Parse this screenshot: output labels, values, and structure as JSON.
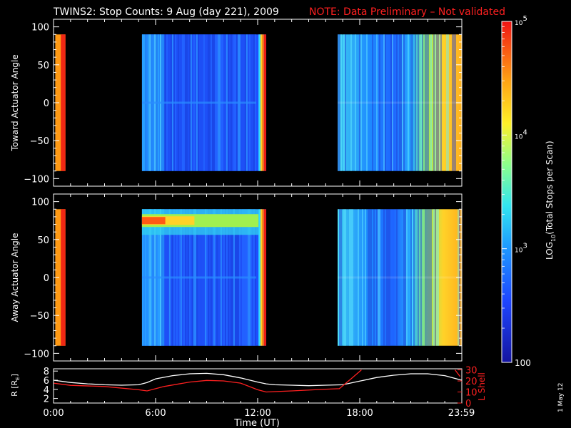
{
  "title": "TWINS2: Stop Counts:  9 Aug (day 221), 2009",
  "note": "NOTE: Data Preliminary – Not validated",
  "date_stamp": "1 May 12",
  "colorbar": {
    "label": "LOG10(Total Stops per Scan)",
    "label_prefix": "LOG",
    "label_sub": "10",
    "label_suffix": "(Total Stops per Scan)",
    "ticks": [
      {
        "value": 100,
        "label": "100"
      },
      {
        "base": "10",
        "exp": "3",
        "value": 1000
      },
      {
        "base": "10",
        "exp": "4",
        "value": 10000
      },
      {
        "base": "10",
        "exp": "5",
        "value": 100000
      }
    ],
    "range": [
      100,
      100000
    ],
    "scale": "log"
  },
  "chart_data": [
    {
      "type": "heatmap",
      "panel": "top",
      "ylabel": "Toward Actuator Angle",
      "ylim": [
        -110,
        110
      ],
      "y_ticks": [
        "100",
        "50",
        "0",
        "−50",
        "−100"
      ],
      "y_tick_values": [
        100,
        50,
        0,
        -50,
        -100
      ],
      "angle_range": [
        -90,
        90
      ],
      "xlim_hours": [
        0,
        24
      ],
      "data_segments_hours": [
        [
          0.1,
          0.7
        ],
        [
          5.2,
          12.5
        ],
        [
          16.7,
          24
        ]
      ],
      "typical_counts": {
        "segment1": 30000,
        "segment2_core": 500,
        "segment2_edge": 50000,
        "segment3_start": 700,
        "segment3_end": 20000
      }
    },
    {
      "type": "heatmap",
      "panel": "middle",
      "ylabel": "Away Actuator Angle",
      "ylim": [
        -110,
        110
      ],
      "y_ticks": [
        "100",
        "50",
        "0",
        "−50",
        "−100"
      ],
      "y_tick_values": [
        100,
        50,
        0,
        -50,
        -100
      ],
      "angle_range": [
        -90,
        90
      ],
      "xlim_hours": [
        0,
        24
      ],
      "data_segments_hours": [
        [
          0.1,
          0.7
        ],
        [
          5.2,
          12.5
        ],
        [
          16.7,
          24
        ]
      ],
      "enhancement_band": {
        "angle": 75,
        "hours": [
          5.2,
          12.5
        ],
        "peak_counts": 60000
      }
    },
    {
      "type": "line",
      "panel": "bottom",
      "ylabel_left": "R [RE]",
      "ylabel_left_prefix": "R [R",
      "ylabel_left_sub": "E",
      "ylabel_left_suffix": "]",
      "ylabel_right": "L Shell",
      "xlabel": "Time (UT)",
      "x_tick_labels": [
        "0:00",
        "6:00",
        "12:00",
        "18:00",
        "23:59"
      ],
      "x_tick_hours": [
        0,
        6,
        12,
        18,
        23.98
      ],
      "y_left_ticks": [
        "8",
        "6",
        "4",
        "2"
      ],
      "y_left_values": [
        8,
        6,
        4,
        2
      ],
      "y_left_lim": [
        1,
        8.5
      ],
      "y_right_ticks": [
        "30",
        "20",
        "10",
        "0"
      ],
      "y_right_values": [
        30,
        20,
        10,
        0
      ],
      "y_right_lim": [
        0,
        31
      ],
      "series": [
        {
          "name": "R",
          "color": "#ffffff",
          "axis": "left",
          "x": [
            0,
            1,
            2,
            3,
            4,
            5,
            5.5,
            6,
            7,
            8,
            9,
            10,
            11,
            12,
            12.5,
            13,
            14,
            15,
            16,
            17,
            18,
            19,
            20,
            21,
            22,
            23,
            24
          ],
          "y": [
            6.0,
            5.5,
            5.2,
            5.0,
            4.9,
            5.0,
            5.5,
            6.3,
            7.0,
            7.4,
            7.5,
            7.2,
            6.5,
            5.6,
            5.2,
            5.0,
            4.9,
            4.8,
            4.9,
            5.0,
            5.8,
            6.6,
            7.1,
            7.4,
            7.4,
            7.0,
            6.0
          ]
        },
        {
          "name": "L Shell",
          "color": "#ff2020",
          "axis": "right",
          "x": [
            0,
            0.5,
            1,
            3,
            5,
            5.5,
            6.5,
            8,
            9,
            10,
            11,
            12,
            12.5,
            14,
            16,
            16.8,
            17.5,
            18.1,
            18.3,
            23.6,
            23.9
          ],
          "y": [
            18,
            17,
            16,
            15,
            12,
            11,
            15,
            19,
            20.5,
            20,
            18,
            12,
            10,
            11,
            12.5,
            13,
            22,
            30,
            null,
            30,
            24
          ]
        }
      ]
    }
  ]
}
